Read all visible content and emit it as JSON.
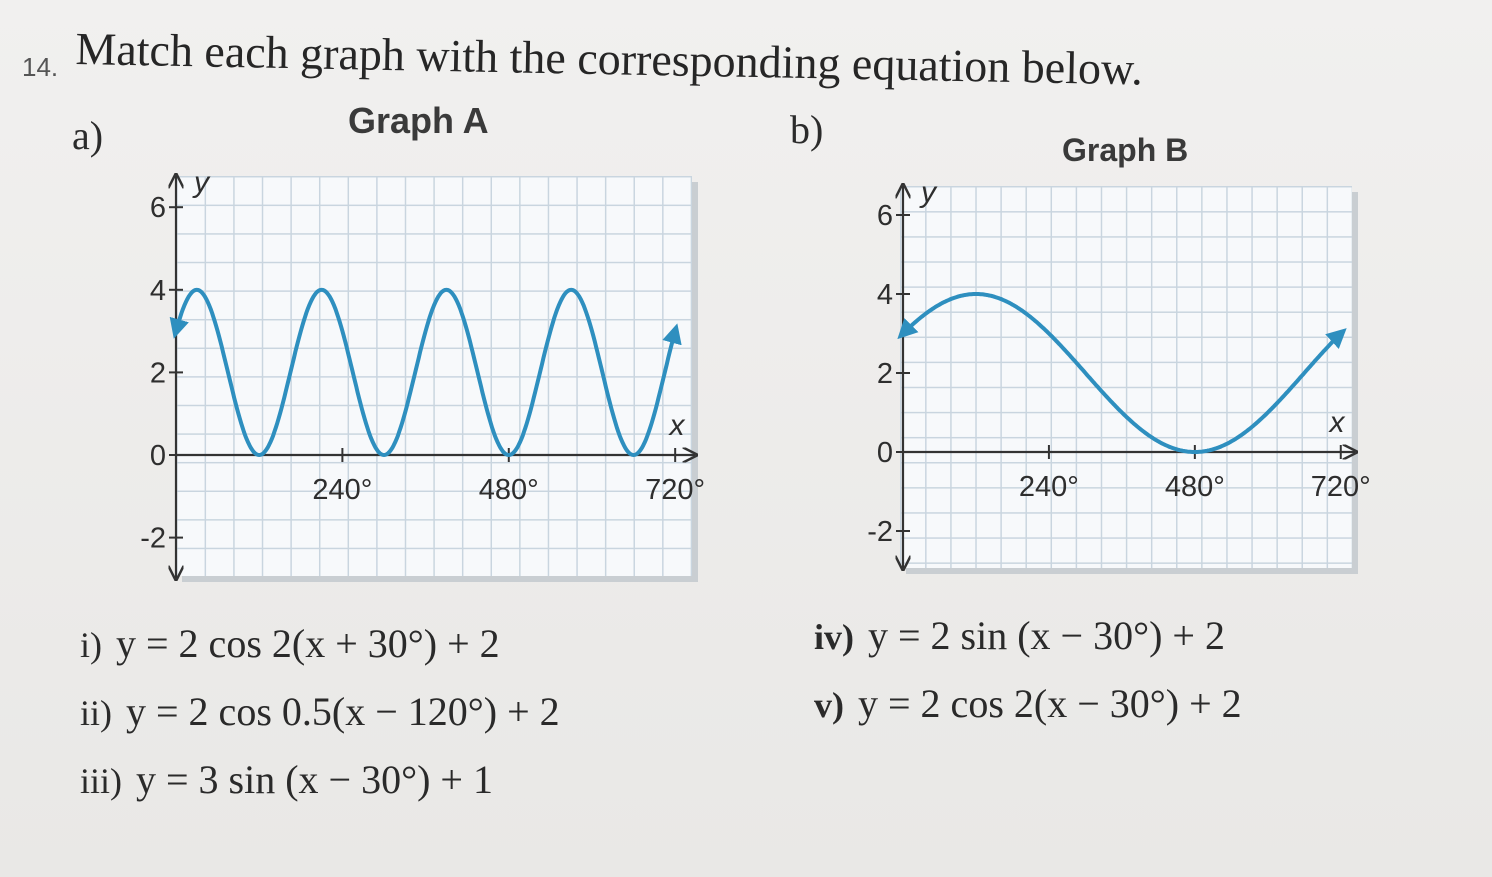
{
  "question": {
    "number": "14.",
    "prompt": "Match each graph with the corresponding equation below."
  },
  "parts": [
    {
      "label": "a)",
      "graph_title": "Graph A"
    },
    {
      "label": "b)",
      "graph_title": "Graph B"
    }
  ],
  "chart_data": [
    {
      "type": "line",
      "title": "Graph A",
      "xlabel": "x",
      "ylabel": "y",
      "xlim": [
        0,
        720
      ],
      "ylim": [
        -2,
        6
      ],
      "x_ticks": [
        240,
        480,
        720
      ],
      "x_tick_labels": [
        "240°",
        "480°",
        "720°"
      ],
      "y_ticks": [
        -2,
        0,
        2,
        4,
        6
      ],
      "y_tick_labels": [
        "-2",
        "0",
        "2",
        "4",
        "6"
      ],
      "grid": true,
      "curve": {
        "kind": "cos",
        "amplitude": 2,
        "frequency": 2,
        "phase_shift": 30,
        "vertical_shift": 2,
        "x_range": [
          0,
          720
        ]
      },
      "points": [
        [
          0,
          3
        ],
        [
          30,
          4
        ],
        [
          120,
          0
        ],
        [
          210,
          4
        ],
        [
          300,
          0
        ],
        [
          390,
          4
        ],
        [
          480,
          0
        ],
        [
          570,
          4
        ],
        [
          660,
          0
        ],
        [
          720,
          3
        ]
      ]
    },
    {
      "type": "line",
      "title": "Graph B",
      "xlabel": "x",
      "ylabel": "y",
      "xlim": [
        0,
        720
      ],
      "ylim": [
        -2,
        6
      ],
      "x_ticks": [
        240,
        480,
        720
      ],
      "x_tick_labels": [
        "240°",
        "480°",
        "720°"
      ],
      "y_ticks": [
        -2,
        0,
        2,
        4,
        6
      ],
      "y_tick_labels": [
        "-2",
        "0",
        "2",
        "4",
        "6"
      ],
      "grid": true,
      "curve": {
        "kind": "cos",
        "amplitude": 2,
        "frequency": 0.5,
        "phase_shift": 120,
        "vertical_shift": 2,
        "x_range": [
          0,
          720
        ]
      },
      "points": [
        [
          0,
          3
        ],
        [
          120,
          4
        ],
        [
          480,
          0
        ],
        [
          720,
          3
        ]
      ]
    }
  ],
  "equations": [
    {
      "label": "i)",
      "text": "y = 2 cos 2(x + 30°) + 2"
    },
    {
      "label": "ii)",
      "text": "y = 2 cos 0.5(x − 120°) + 2"
    },
    {
      "label": "iii)",
      "text": "y = 3 sin (x − 30°) + 1"
    },
    {
      "label": "iv)",
      "text": "y = 2 sin (x − 30°) + 2"
    },
    {
      "label": "v)",
      "text": "y = 2 cos 2(x − 30°) + 2"
    }
  ],
  "colors": {
    "curve": "#2e8fbf",
    "axis": "#333333",
    "grid": "#c9d5df"
  }
}
